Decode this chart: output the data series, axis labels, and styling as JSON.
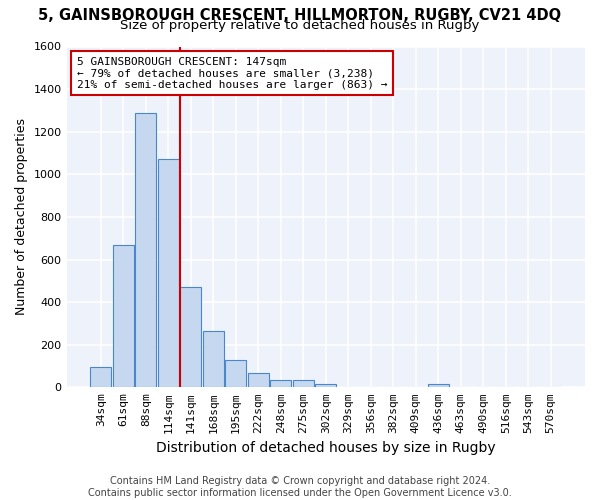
{
  "title_line1": "5, GAINSBOROUGH CRESCENT, HILLMORTON, RUGBY, CV21 4DQ",
  "title_line2": "Size of property relative to detached houses in Rugby",
  "xlabel": "Distribution of detached houses by size in Rugby",
  "ylabel": "Number of detached properties",
  "categories": [
    "34sqm",
    "61sqm",
    "88sqm",
    "114sqm",
    "141sqm",
    "168sqm",
    "195sqm",
    "222sqm",
    "248sqm",
    "275sqm",
    "302sqm",
    "329sqm",
    "356sqm",
    "382sqm",
    "409sqm",
    "436sqm",
    "463sqm",
    "490sqm",
    "516sqm",
    "543sqm",
    "570sqm"
  ],
  "values": [
    97,
    670,
    1290,
    1070,
    470,
    265,
    130,
    68,
    32,
    35,
    14,
    0,
    0,
    0,
    0,
    14,
    0,
    0,
    0,
    0,
    0
  ],
  "bar_color": "#c5d8f0",
  "bar_edge_color": "#4a86c8",
  "vline_index": 3.5,
  "vline_color": "#cc0000",
  "annotation_text": "5 GAINSBOROUGH CRESCENT: 147sqm\n← 79% of detached houses are smaller (3,238)\n21% of semi-detached houses are larger (863) →",
  "annotation_box_color": "white",
  "annotation_box_edge": "#cc0000",
  "ylim": [
    0,
    1600
  ],
  "yticks": [
    0,
    200,
    400,
    600,
    800,
    1000,
    1200,
    1400,
    1600
  ],
  "footnote": "Contains HM Land Registry data © Crown copyright and database right 2024.\nContains public sector information licensed under the Open Government Licence v3.0.",
  "bg_color": "#eef2fb",
  "grid_color": "white",
  "title_fontsize": 10.5,
  "subtitle_fontsize": 9.5,
  "axis_label_fontsize": 9,
  "tick_fontsize": 8,
  "annotation_fontsize": 8,
  "footnote_fontsize": 7
}
